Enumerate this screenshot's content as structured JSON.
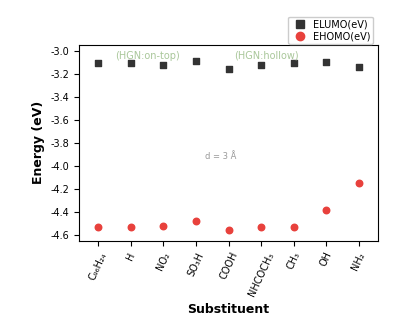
{
  "chart_data": {
    "type": "scatter",
    "x_label": "Substituent",
    "y_label": "Energy (eV)",
    "categories": [
      "C₉₆H₂₄",
      "H",
      "NO₂",
      "SO₃H",
      "COOH",
      "NHCOCH₃",
      "CH₃",
      "OH",
      "NH₂"
    ],
    "series": [
      {
        "name": "ELUMO(eV)",
        "color": "#333333",
        "marker": "square",
        "values": [
          -3.11,
          -3.11,
          -3.12,
          -3.09,
          -3.16,
          -3.12,
          -3.11,
          -3.1,
          -3.14
        ]
      },
      {
        "name": "EHOMO(eV)",
        "color": "#e8413c",
        "marker": "circle",
        "values": [
          -4.53,
          -4.53,
          -4.52,
          -4.48,
          -4.56,
          -4.53,
          -4.53,
          -4.38,
          -4.15
        ]
      }
    ],
    "ylim": [
      -4.65,
      -2.95
    ],
    "yticks": [
      -4.6,
      -4.4,
      -4.2,
      -4.0,
      -3.8,
      -3.6,
      -3.4,
      -3.2,
      -3.0
    ],
    "legend": "upper right",
    "grid": false,
    "annotations": [
      "(HGN:on-top)",
      "(HGN:hollow)",
      "d = 3 Å"
    ]
  }
}
